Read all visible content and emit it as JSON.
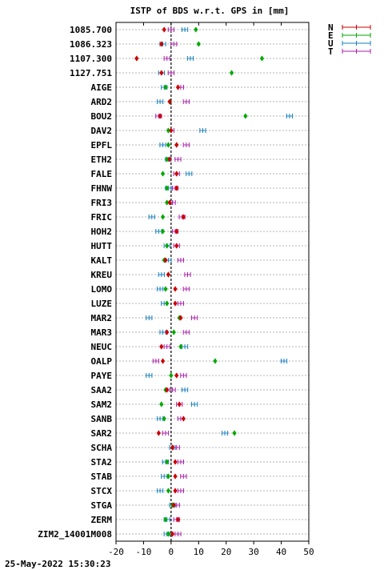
{
  "chart_data": {
    "type": "scatter",
    "title": "ISTP of BDS w.r.t. GPS in [mm]",
    "timestamp": "25-May-2022 15:30:23",
    "xlim": [
      -20,
      50
    ],
    "xticks": [
      -20,
      -10,
      0,
      10,
      20,
      30,
      40,
      50
    ],
    "grid": true,
    "legend_position": "top-right",
    "stations": [
      "1085.700",
      "1086.323",
      "1107.300",
      "1127.751",
      "AIGE",
      "ARD2",
      "BOU2",
      "DAV2",
      "EPFL",
      "ETH2",
      "FALE",
      "FHNW",
      "FRI3",
      "FRIC",
      "HOH2",
      "HUTT",
      "KALT",
      "KREU",
      "LOMO",
      "LUZE",
      "MAR2",
      "MAR3",
      "NEUC",
      "OALP",
      "PAYE",
      "SAA2",
      "SAM2",
      "SANB",
      "SAR2",
      "SCHA",
      "STA2",
      "STAB",
      "STCX",
      "STGA",
      "ZERM",
      "ZIM2_14001M008"
    ],
    "series": [
      {
        "name": "N",
        "color": "#cc0000",
        "values": [
          -2.5,
          -3.5,
          -12.5,
          -3.5,
          2.5,
          -0.5,
          -4,
          0,
          2,
          -0.5,
          2,
          2,
          -0.5,
          4.5,
          2,
          2,
          -2,
          -1,
          1.5,
          1.5,
          3.5,
          -1.5,
          -3.5,
          -3,
          2,
          -1.5,
          3,
          4.5,
          -4.5,
          0.5,
          1.5,
          1.5,
          1.5,
          1,
          2.5,
          0.5
        ]
      },
      {
        "name": "E",
        "color": "#00aa00",
        "values": [
          9,
          10,
          33,
          22,
          -2,
          -0.5,
          27,
          -1,
          -1,
          -1.5,
          -3,
          -1.5,
          -1.5,
          -3,
          -3,
          -1.5,
          -2.5,
          -1,
          -2,
          -1.5,
          3,
          1,
          3.5,
          16,
          0,
          -2,
          -3.5,
          -2.5,
          23,
          0.5,
          -1.5,
          -1,
          -1,
          0.5,
          -2,
          -1
        ]
      },
      {
        "name": "U",
        "color": "#1a80c0",
        "values": [
          5,
          -3,
          7,
          -3.5,
          -2.5,
          -4,
          43,
          11.5,
          -3,
          -1,
          6.5,
          -1,
          -0.5,
          -7,
          -4.5,
          -1.5,
          -1,
          -3.5,
          -4,
          -2.5,
          -8,
          -3,
          5,
          41,
          -8,
          5,
          8.5,
          -4,
          19.5,
          0.5,
          -2,
          -2.5,
          -4,
          0.5,
          -1.5,
          -1.5
        ]
      },
      {
        "name": "T",
        "color": "#aa22aa",
        "values": [
          0,
          1,
          -1.5,
          0,
          3.5,
          5.5,
          -4.5,
          0,
          5.5,
          2.5,
          2,
          1.5,
          0.5,
          4,
          1.5,
          2,
          3.5,
          6,
          5.5,
          3.5,
          8.5,
          5.5,
          -1.5,
          -5.5,
          4.5,
          0.5,
          3,
          3.5,
          -2,
          2,
          3.5,
          4.5,
          3.5,
          2,
          2,
          2.5
        ]
      }
    ]
  }
}
